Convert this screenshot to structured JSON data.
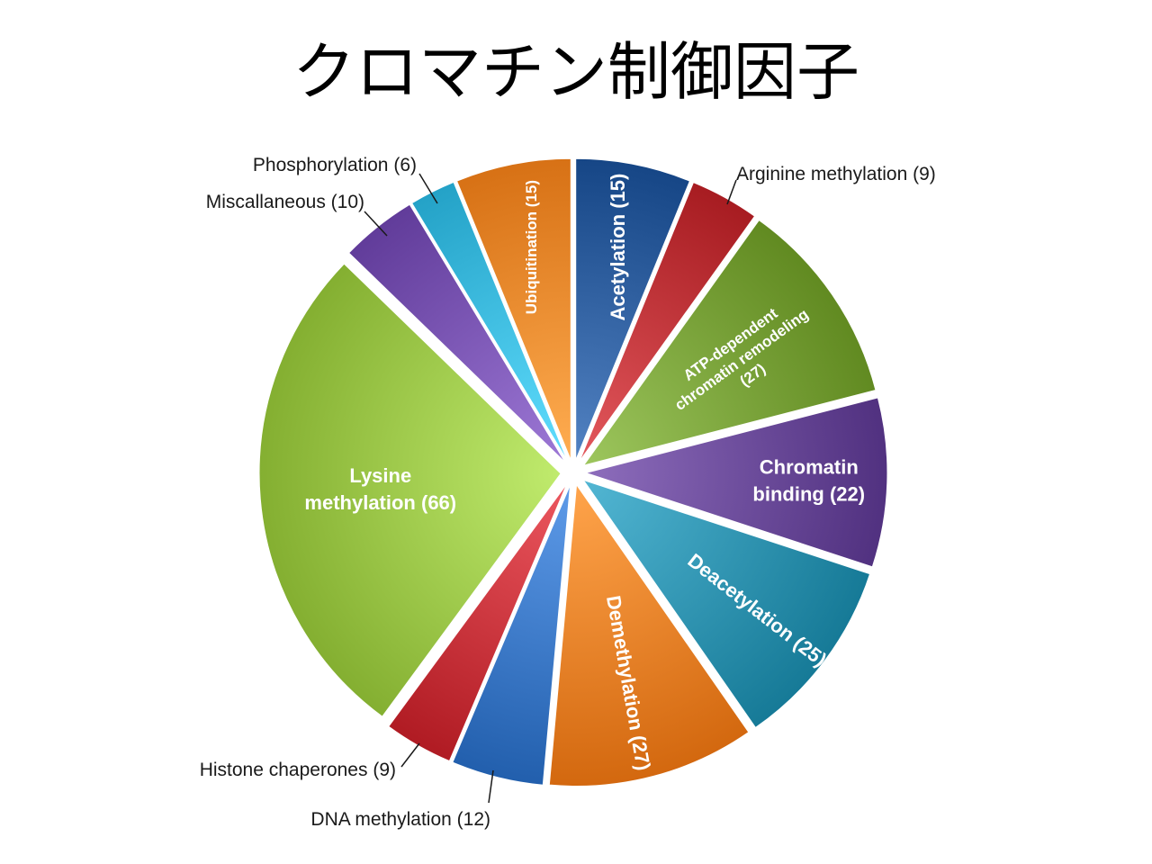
{
  "title": "クロマチン制御因子",
  "chart_data": {
    "type": "pie",
    "title": "",
    "slices": [
      {
        "label": "Acetylation (15)",
        "category": "Acetylation",
        "value": 15,
        "color": "#2f5f9f",
        "placement": "inside"
      },
      {
        "label": "Arginine methylation (9)",
        "category": "Arginine methylation",
        "value": 9,
        "color": "#c0353a",
        "placement": "outside"
      },
      {
        "label": "ATP-dependent chromatin remodeling (27)",
        "category": "ATP-dependent chromatin remodeling",
        "value": 27,
        "color": "#7aa33a",
        "placement": "inside"
      },
      {
        "label": "Chromatin binding (22)",
        "category": "Chromatin binding",
        "value": 22,
        "color": "#6a4a99",
        "placement": "inside"
      },
      {
        "label": "Deacetylation (25)",
        "category": "Deacetylation",
        "value": 25,
        "color": "#2f93b0",
        "placement": "inside"
      },
      {
        "label": "Demethylation (27)",
        "category": "Demethylation",
        "value": 27,
        "color": "#ec8128",
        "placement": "inside"
      },
      {
        "label": "DNA methylation (12)",
        "category": "DNA methylation",
        "value": 12,
        "color": "#3b78c6",
        "placement": "outside"
      },
      {
        "label": "Histone chaperones (9)",
        "category": "Histone chaperones",
        "value": 9,
        "color": "#c9343c",
        "placement": "outside"
      },
      {
        "label": "Lysine methylation (66)",
        "category": "Lysine methylation",
        "value": 66,
        "color": "#9dc84a",
        "placement": "inside"
      },
      {
        "label": "Miscallaneous (10)",
        "category": "Miscallaneous",
        "value": 10,
        "color": "#7a55b3",
        "placement": "outside"
      },
      {
        "label": "Phosphorylation (6)",
        "category": "Phosphorylation",
        "value": 6,
        "color": "#3dbbe0",
        "placement": "outside"
      },
      {
        "label": "Ubiquitination (15)",
        "category": "Ubiquitination",
        "value": 15,
        "color": "#f08a2e",
        "placement": "inside"
      }
    ],
    "exploded": true,
    "legend": "none"
  }
}
